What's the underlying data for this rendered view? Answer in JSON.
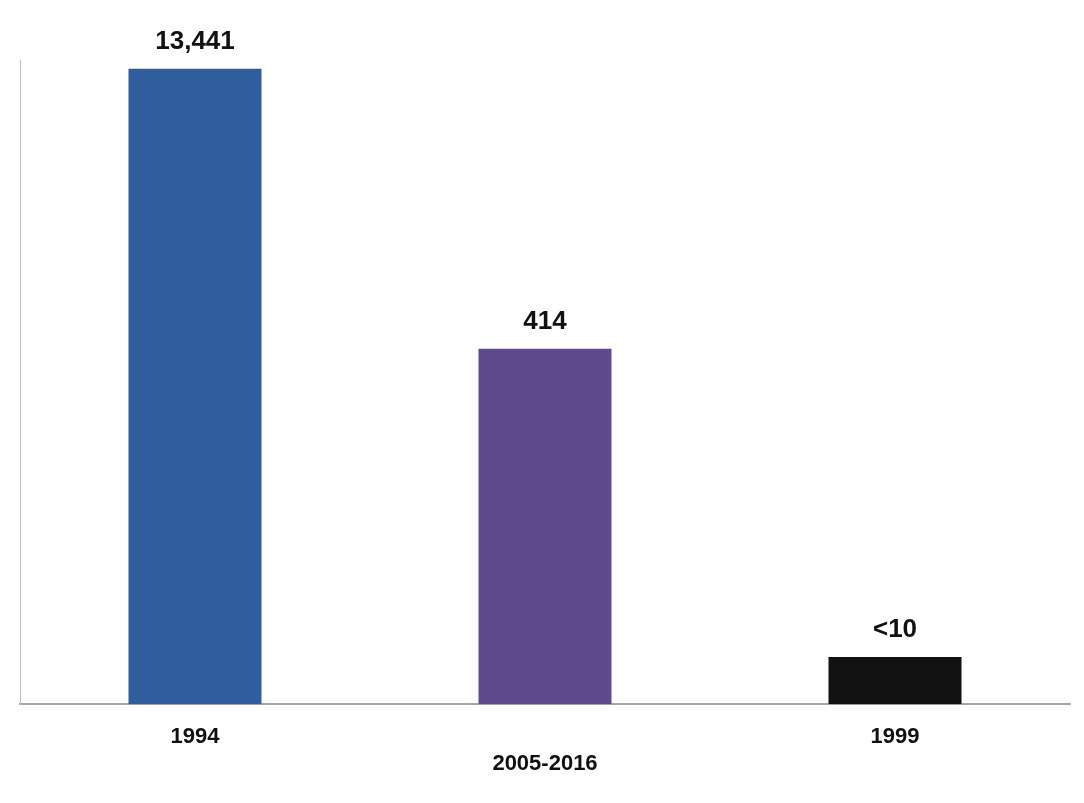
{
  "chart_data": {
    "type": "bar",
    "categories": [
      "1994",
      "2005-2016",
      "1999"
    ],
    "values": [
      13441,
      414,
      9
    ],
    "value_labels": [
      "13,441",
      "414",
      "<10"
    ],
    "colors": [
      "#2f5d9e",
      "#5e4a8c",
      "#111111"
    ],
    "data_labels": true,
    "log": "y",
    "ylim": [
      5,
      15000
    ],
    "tick_labels": "x",
    "grid": false
  }
}
